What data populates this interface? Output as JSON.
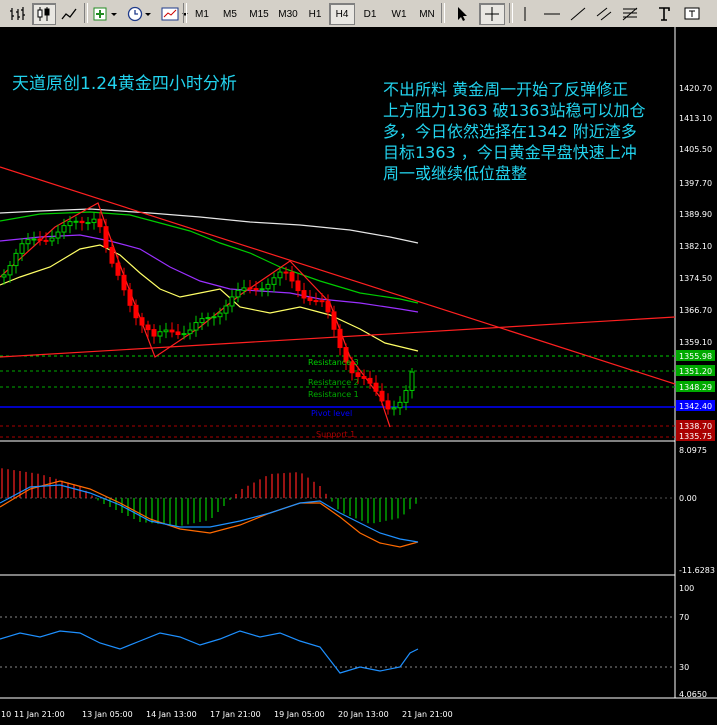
{
  "toolbar": {
    "timeframes": [
      "M1",
      "M5",
      "M15",
      "M30",
      "H1",
      "H4",
      "D1",
      "W1",
      "MN"
    ],
    "active_timeframe": "H4"
  },
  "annotation": {
    "title": "天道原创1.24黄金四小时分析",
    "lines": [
      "不出所料 黄金周一开始了反弹修正",
      "上方阻力1363 破1363站稳可以加仓",
      "多，今日依然选择在1342 附近渣多",
      "目标1363 ，今日黄金早盘快速上冲",
      "周一或继续低位盘整"
    ]
  },
  "price_axis": {
    "ticks": [
      "1420.70",
      "1413.10",
      "1405.50",
      "1397.70",
      "1389.90",
      "1382.10",
      "1374.50",
      "1366.70",
      "1359.10"
    ],
    "tags": [
      {
        "label": "1355.98",
        "color": "#ffffff",
        "bg": "#00aa00"
      },
      {
        "label": "1351.20",
        "color": "#ffffff",
        "bg": "#00aa00"
      },
      {
        "label": "1348.29",
        "color": "#ffffff",
        "bg": "#00aa00"
      },
      {
        "label": "1342.40",
        "color": "#ffffff",
        "bg": "#0000ff"
      },
      {
        "label": "1338.70",
        "color": "#ffffff",
        "bg": "#aa0000"
      },
      {
        "label": "1335.75",
        "color": "#ffffff",
        "bg": "#aa0000"
      }
    ]
  },
  "levels": {
    "r3": "Resistance 3",
    "r2": "Resistance 2",
    "r1": "Resistance 1",
    "pivot": "Pivot level",
    "s1": "Support 1"
  },
  "macd": {
    "ticks": [
      "8.0975",
      "0.00",
      "-11.6283"
    ]
  },
  "rsi": {
    "ticks": [
      "100",
      "70",
      "30",
      "4.0650"
    ]
  },
  "time_axis": [
    "10",
    "11 Jan 21:00",
    "13 Jan 05:00",
    "14 Jan 13:00",
    "17 Jan 21:00",
    "19 Jan 05:00",
    "20 Jan 13:00",
    "21 Jan 21:00"
  ],
  "colors": {
    "bull": "#00cc00",
    "bear": "#ff0000",
    "ma_white": "#e6e6e6",
    "ma_green": "#00cc00",
    "ma_purple": "#8a2be2",
    "ma_yellow": "#ffff66",
    "trend_red": "#ff2020",
    "text_cyan": "#22d3ee"
  }
}
